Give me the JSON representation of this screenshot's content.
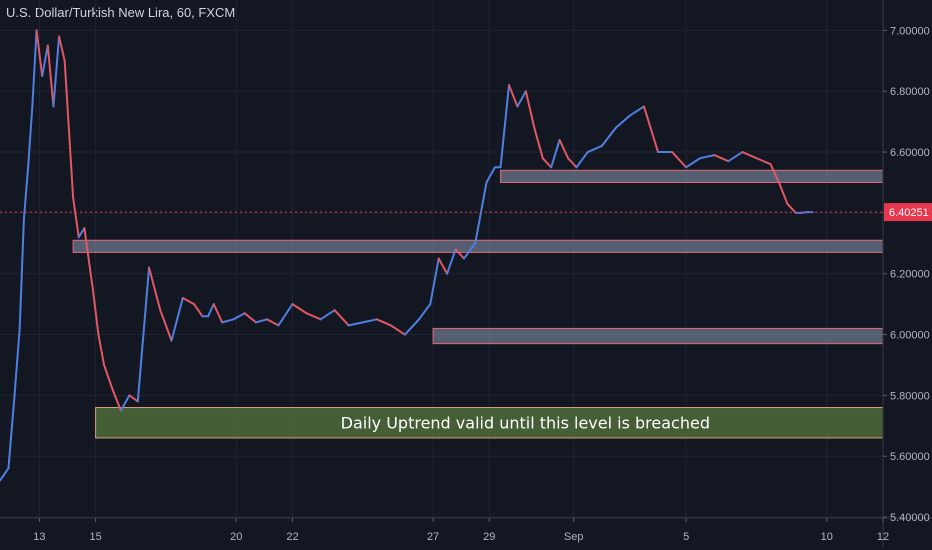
{
  "header": {
    "title": "U.S. Dollar/Turkish New Lira, 60, FXCM"
  },
  "colors": {
    "background": "#131722",
    "grid": "#1f2433",
    "up": "#4f7fe0",
    "down": "#e05863",
    "axis_text": "#b2b5be",
    "last_price_badge": "#e8364c",
    "zone_fill": "#8e9bb4",
    "zone_border": "#e06a78",
    "support_fill": "#4f6b3a",
    "support_border": "#d4a574"
  },
  "chart_data": {
    "type": "line",
    "title": "U.S. Dollar/Turkish New Lira, 60, FXCM",
    "xlabel": "",
    "ylabel": "",
    "ylim": [
      5.4,
      7.1
    ],
    "grid": true,
    "x_tick_labels": [
      "13",
      "15",
      "20",
      "22",
      "27",
      "29",
      "Sep",
      "5",
      "10",
      "12"
    ],
    "x_tick_days": [
      13,
      15,
      20,
      22,
      27,
      29,
      32,
      36,
      41,
      43
    ],
    "xlim_days": [
      11.6,
      43.0
    ],
    "y_ticks": [
      5.4,
      5.6,
      5.8,
      6.0,
      6.2,
      6.4,
      6.6,
      6.8,
      7.0
    ],
    "y_tick_labels": [
      "5.40000",
      "5.60000",
      "5.80000",
      "6.00000",
      "6.20000",
      "6.40000",
      "6.60000",
      "6.80000",
      "7.00000"
    ],
    "last_price": 6.40251,
    "last_price_label": "6.40251",
    "series": [
      {
        "x": [
          11.6,
          11.9,
          12.1,
          12.3,
          12.45,
          12.6,
          12.75,
          12.9,
          13.1,
          13.3,
          13.5,
          13.7,
          13.9,
          14.2,
          14.4,
          14.6,
          14.9,
          15.1,
          15.3,
          15.6,
          15.9,
          16.2,
          16.5,
          16.9,
          17.3,
          17.7,
          18.1,
          18.5,
          18.8,
          19.0,
          19.2,
          19.5,
          19.9,
          20.3,
          20.7,
          21.1,
          21.5,
          22.0,
          22.5,
          23.0,
          23.5,
          24.0,
          24.5,
          25.0,
          25.5,
          26.0,
          26.5,
          26.9,
          27.2,
          27.5,
          27.8,
          28.1,
          28.5,
          28.9,
          29.2,
          29.4,
          29.7,
          30.0,
          30.3,
          30.6,
          30.9,
          31.2,
          31.5,
          31.8,
          32.1,
          32.5,
          33.0,
          33.5,
          34.0,
          34.5,
          35.0,
          35.5,
          36.0,
          36.5,
          37.0,
          37.5,
          38.0,
          38.5,
          39.0,
          39.3,
          39.6,
          39.9,
          40.1,
          40.3,
          40.5
        ],
        "values": [
          5.52,
          5.56,
          5.78,
          6.02,
          6.38,
          6.55,
          6.75,
          7.0,
          6.85,
          6.95,
          6.75,
          6.98,
          6.9,
          6.45,
          6.32,
          6.35,
          6.15,
          6.0,
          5.9,
          5.82,
          5.75,
          5.8,
          5.78,
          6.22,
          6.08,
          5.98,
          6.12,
          6.1,
          6.06,
          6.06,
          6.1,
          6.04,
          6.05,
          6.07,
          6.04,
          6.05,
          6.03,
          6.1,
          6.07,
          6.05,
          6.08,
          6.03,
          6.04,
          6.05,
          6.03,
          6.0,
          6.05,
          6.1,
          6.25,
          6.2,
          6.28,
          6.25,
          6.3,
          6.5,
          6.55,
          6.55,
          6.82,
          6.75,
          6.8,
          6.68,
          6.58,
          6.55,
          6.64,
          6.58,
          6.55,
          6.6,
          6.62,
          6.68,
          6.72,
          6.75,
          6.6,
          6.6,
          6.55,
          6.58,
          6.59,
          6.57,
          6.6,
          6.58,
          6.56,
          6.5,
          6.43,
          6.4,
          6.4,
          6.4025,
          6.40251
        ]
      }
    ],
    "zones": [
      {
        "kind": "resistance",
        "low": 6.5,
        "high": 6.54,
        "x_start_day": 29.4,
        "x_end_day": 43.0,
        "label": ""
      },
      {
        "kind": "resistance",
        "low": 6.27,
        "high": 6.31,
        "x_start_day": 14.2,
        "x_end_day": 43.0,
        "label": ""
      },
      {
        "kind": "resistance",
        "low": 5.97,
        "high": 6.02,
        "x_start_day": 27.0,
        "x_end_day": 43.0,
        "label": ""
      },
      {
        "kind": "support",
        "low": 5.66,
        "high": 5.76,
        "x_start_day": 15.0,
        "x_end_day": 43.0,
        "label": "Daily Uptrend valid until this level is breached"
      }
    ]
  }
}
